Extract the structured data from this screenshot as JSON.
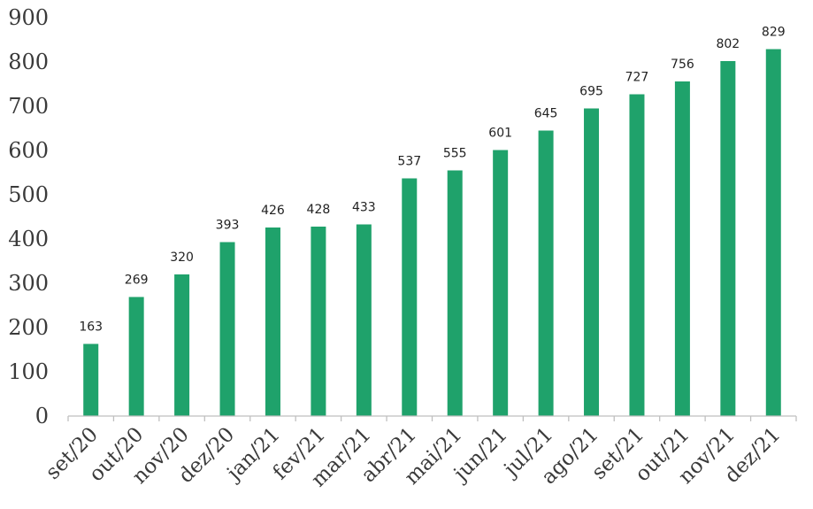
{
  "chart_data": {
    "type": "bar",
    "title": "",
    "xlabel": "",
    "ylabel": "",
    "categories": [
      "set/20",
      "out/20",
      "nov/20",
      "dez/20",
      "jan/21",
      "fev/21",
      "mar/21",
      "abr/21",
      "mai/21",
      "jun/21",
      "jul/21",
      "ago/21",
      "set/21",
      "out/21",
      "nov/21",
      "dez/21"
    ],
    "values": [
      163,
      269,
      320,
      393,
      426,
      428,
      433,
      537,
      555,
      601,
      645,
      695,
      727,
      756,
      802,
      829
    ],
    "ylim": [
      0,
      900
    ],
    "yticks": [
      0,
      100,
      200,
      300,
      400,
      500,
      600,
      700,
      800,
      900
    ],
    "bar_color": "#1fa26b",
    "grid": false,
    "legend": "none",
    "data_labels": true
  }
}
